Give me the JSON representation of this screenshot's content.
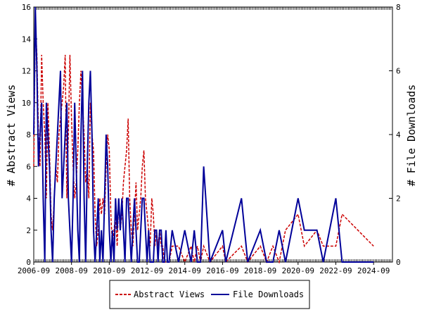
{
  "chart_data": {
    "type": "line",
    "ylabel_left": "# Abstract Views",
    "ylabel_right": "# File Downloads",
    "x_tick_labels": [
      "2006-09",
      "2008-09",
      "2010-09",
      "2012-09",
      "2014-09",
      "2016-09",
      "2018-09",
      "2020-09",
      "2022-09",
      "2024-09"
    ],
    "x_range": [
      "2006-09",
      "2025-09"
    ],
    "ylim_left": [
      0,
      16
    ],
    "ylim_right": [
      0,
      8
    ],
    "y_ticks_left": [
      0,
      2,
      4,
      6,
      8,
      10,
      12,
      14,
      16
    ],
    "y_ticks_right": [
      0,
      2,
      4,
      6,
      8
    ],
    "legend": "bottom-center",
    "series": [
      {
        "name": "Abstract Views",
        "axis": "left",
        "color": "#cc0000",
        "style": "dashed",
        "x": [
          "2006-09",
          "2006-10",
          "2006-11",
          "2006-12",
          "2007-01",
          "2007-02",
          "2007-03",
          "2007-04",
          "2007-05",
          "2007-06",
          "2007-07",
          "2007-08",
          "2007-09",
          "2007-10",
          "2007-11",
          "2007-12",
          "2008-01",
          "2008-02",
          "2008-03",
          "2008-04",
          "2008-05",
          "2008-06",
          "2008-07",
          "2008-08",
          "2008-09",
          "2008-10",
          "2008-11",
          "2008-12",
          "2009-01",
          "2009-02",
          "2009-03",
          "2009-04",
          "2009-05",
          "2009-06",
          "2009-07",
          "2009-08",
          "2009-09",
          "2009-10",
          "2009-11",
          "2009-12",
          "2010-01",
          "2010-02",
          "2010-03",
          "2010-04",
          "2010-05",
          "2010-06",
          "2010-07",
          "2010-08",
          "2010-09",
          "2010-10",
          "2010-11",
          "2010-12",
          "2011-01",
          "2011-02",
          "2011-03",
          "2011-04",
          "2011-05",
          "2011-06",
          "2011-07",
          "2011-08",
          "2011-09",
          "2011-10",
          "2011-11",
          "2011-12",
          "2012-01",
          "2012-02",
          "2012-03",
          "2012-04",
          "2012-05",
          "2012-06",
          "2012-07",
          "2012-08",
          "2012-09",
          "2012-10",
          "2012-11",
          "2012-12",
          "2013-01",
          "2013-02",
          "2013-03",
          "2013-04",
          "2013-05",
          "2013-06",
          "2013-07",
          "2013-08",
          "2013-09",
          "2013-10",
          "2013-11",
          "2014-01",
          "2014-05",
          "2014-09",
          "2015-01",
          "2015-03",
          "2015-05",
          "2015-07",
          "2015-09",
          "2016-01",
          "2016-09",
          "2016-11",
          "2017-09",
          "2018-01",
          "2018-09",
          "2019-01",
          "2019-05",
          "2019-09",
          "2020-01",
          "2020-09",
          "2021-01",
          "2021-09",
          "2022-01",
          "2022-09",
          "2023-01",
          "2024-09"
        ],
        "y": [
          6,
          15,
          13,
          8,
          6,
          13,
          10,
          8,
          4,
          10,
          7,
          3,
          2,
          4,
          6,
          5,
          8,
          9,
          10,
          11,
          13,
          4,
          8,
          13,
          9,
          6,
          4,
          5,
          7,
          10,
          12,
          10,
          8,
          5,
          6,
          4,
          10,
          8,
          7,
          3,
          1,
          2,
          4,
          3,
          4,
          3,
          6,
          8,
          7,
          3,
          1,
          2,
          3,
          1,
          4,
          2,
          3,
          5,
          6,
          7,
          9,
          4,
          2,
          1,
          3,
          5,
          2,
          3,
          4,
          6,
          7,
          4,
          3,
          2,
          1,
          4,
          3,
          1,
          2,
          1,
          2,
          1,
          1,
          0,
          0,
          0,
          0,
          1,
          1,
          0,
          1,
          0,
          1,
          0,
          1,
          0,
          1,
          0,
          1,
          0,
          1,
          0,
          1,
          0,
          2,
          3,
          1,
          2,
          1,
          1,
          3,
          1
        ]
      },
      {
        "name": "File Downloads",
        "axis": "right",
        "color": "#000099",
        "style": "solid",
        "x": [
          "2006-09",
          "2006-10",
          "2006-11",
          "2006-12",
          "2007-01",
          "2007-02",
          "2007-03",
          "2007-04",
          "2007-05",
          "2007-06",
          "2007-07",
          "2007-08",
          "2007-09",
          "2007-10",
          "2007-11",
          "2007-12",
          "2008-01",
          "2008-02",
          "2008-03",
          "2008-04",
          "2008-05",
          "2008-06",
          "2008-07",
          "2008-08",
          "2008-09",
          "2008-10",
          "2008-11",
          "2008-12",
          "2009-01",
          "2009-02",
          "2009-03",
          "2009-04",
          "2009-05",
          "2009-06",
          "2009-07",
          "2009-08",
          "2009-09",
          "2009-10",
          "2009-11",
          "2009-12",
          "2010-01",
          "2010-02",
          "2010-03",
          "2010-04",
          "2010-05",
          "2010-06",
          "2010-07",
          "2010-08",
          "2010-09",
          "2010-10",
          "2010-11",
          "2010-12",
          "2011-01",
          "2011-02",
          "2011-03",
          "2011-04",
          "2011-05",
          "2011-06",
          "2011-07",
          "2011-08",
          "2011-09",
          "2011-10",
          "2011-11",
          "2011-12",
          "2012-01",
          "2012-02",
          "2012-03",
          "2012-04",
          "2012-05",
          "2012-06",
          "2012-07",
          "2012-08",
          "2012-09",
          "2012-10",
          "2012-11",
          "2012-12",
          "2013-01",
          "2013-02",
          "2013-03",
          "2013-04",
          "2013-05",
          "2013-06",
          "2013-07",
          "2013-08",
          "2013-09",
          "2013-10",
          "2013-11",
          "2014-01",
          "2014-05",
          "2014-09",
          "2015-01",
          "2015-03",
          "2015-05",
          "2015-07",
          "2015-09",
          "2016-01",
          "2016-09",
          "2016-11",
          "2017-09",
          "2018-01",
          "2018-09",
          "2019-01",
          "2019-05",
          "2019-09",
          "2020-01",
          "2020-09",
          "2021-01",
          "2021-09",
          "2022-01",
          "2022-09",
          "2023-01",
          "2024-09"
        ],
        "y": [
          4,
          8,
          6,
          3,
          4,
          5,
          2,
          0,
          5,
          4,
          3,
          1,
          0,
          2,
          3,
          4,
          5,
          6,
          2,
          3,
          4,
          5,
          2,
          1,
          0,
          2,
          5,
          3,
          1,
          0,
          4,
          6,
          2,
          0,
          3,
          5,
          6,
          4,
          1,
          0,
          1,
          2,
          0,
          1,
          0,
          2,
          4,
          3,
          1,
          0,
          1,
          0,
          2,
          1,
          2,
          1,
          2,
          1,
          0,
          2,
          2,
          1,
          0,
          1,
          2,
          1,
          0,
          0,
          1,
          2,
          2,
          1,
          0,
          1,
          0,
          0,
          0,
          1,
          1,
          0,
          1,
          1,
          0,
          0,
          1,
          0,
          0,
          1,
          0,
          1,
          0,
          1,
          0,
          0,
          3,
          0,
          1,
          0,
          2,
          0,
          1,
          0,
          0,
          1,
          0,
          2,
          1,
          1,
          0,
          2,
          0,
          0
        ]
      }
    ]
  }
}
